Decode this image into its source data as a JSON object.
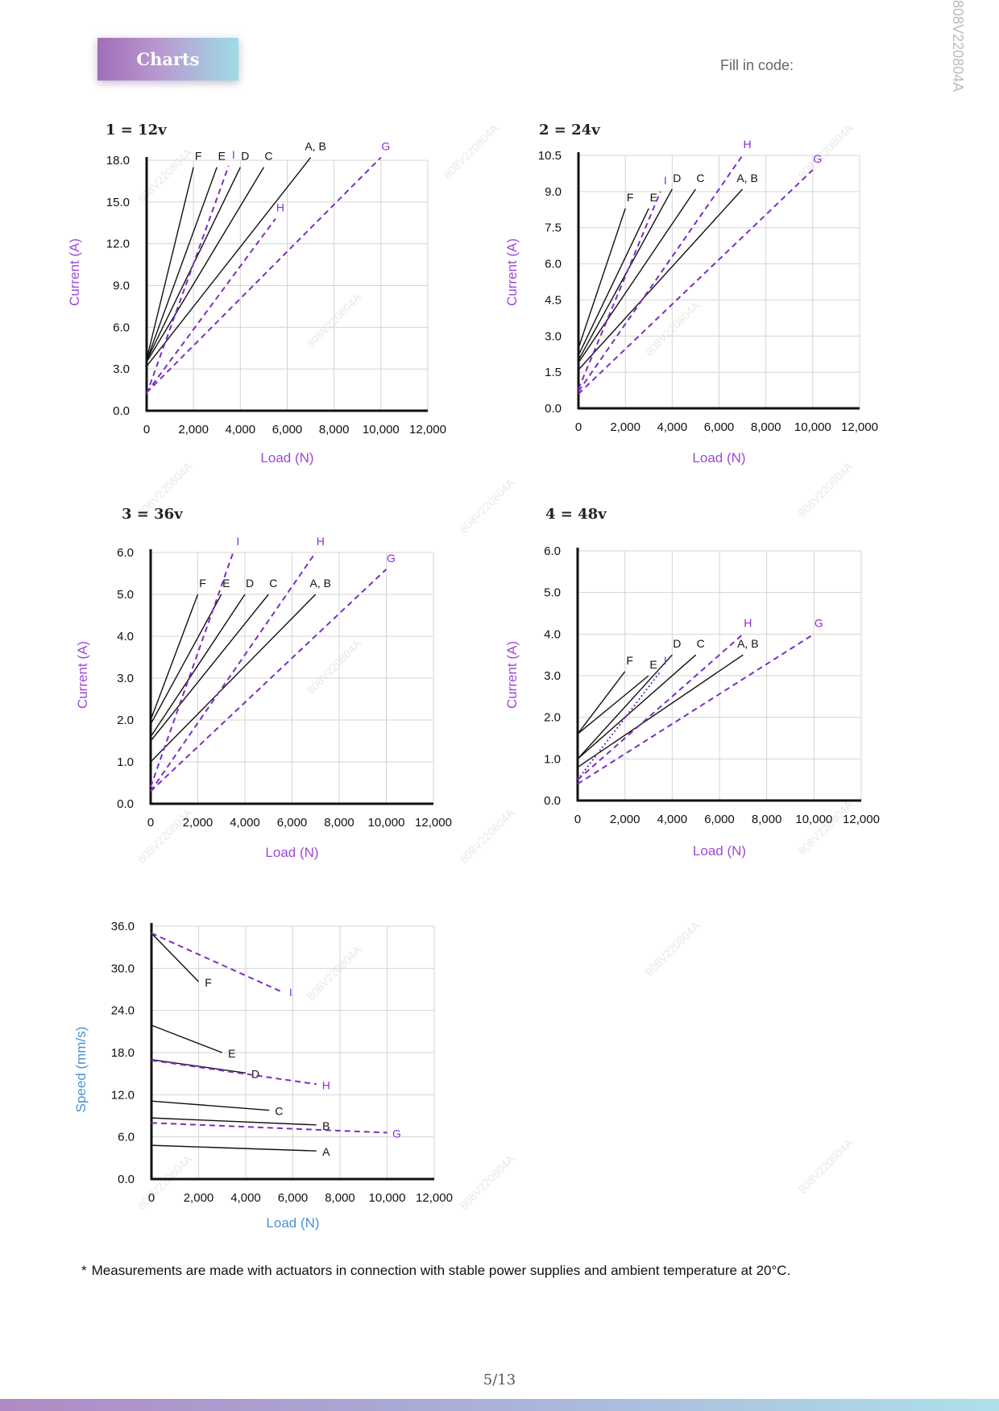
{
  "header": {
    "title": "Charts",
    "fill_code_label": "Fill in code:",
    "doc_code": "808V220804A"
  },
  "watermark": "808V220804A",
  "footnote": {
    "mark": "*",
    "text": "Measurements are made with actuators in connection with stable power supplies and ambient temperature at 20°C."
  },
  "page": {
    "number": "5∕13"
  },
  "colors": {
    "solid": "#111111",
    "dashed": "#7b2fbf",
    "current_axis_label": "#a048d8",
    "speed_axis_label": "#4a90d9"
  },
  "chart_data": [
    {
      "type": "line",
      "title": "1 = 12v",
      "xlabel": "Load (N)",
      "ylabel": "Current (A)",
      "xlim": [
        0,
        12000
      ],
      "ylim": [
        0,
        18
      ],
      "xticks": [
        "0",
        "2,000",
        "4,000",
        "6,000",
        "8,000",
        "10,000",
        "12,000"
      ],
      "yticks": [
        "0.0",
        "3.0",
        "6.0",
        "9.0",
        "12.0",
        "15.0",
        "18.0"
      ],
      "grid": true,
      "legend": "labels at line ends",
      "series": [
        {
          "name": "A, B",
          "style": "solid",
          "x": [
            0,
            7000
          ],
          "y": [
            3.2,
            18.2
          ]
        },
        {
          "name": "C",
          "style": "solid",
          "x": [
            0,
            5000
          ],
          "y": [
            3.5,
            17.5
          ]
        },
        {
          "name": "D",
          "style": "solid",
          "x": [
            0,
            4000
          ],
          "y": [
            3.6,
            17.5
          ]
        },
        {
          "name": "E",
          "style": "solid",
          "x": [
            0,
            3000
          ],
          "y": [
            3.6,
            17.5
          ]
        },
        {
          "name": "F",
          "style": "solid",
          "x": [
            0,
            2000
          ],
          "y": [
            3.7,
            17.5
          ]
        },
        {
          "name": "G",
          "style": "dashed",
          "x": [
            0,
            10000
          ],
          "y": [
            1.3,
            18.2
          ]
        },
        {
          "name": "H",
          "style": "dashed",
          "x": [
            0,
            5500
          ],
          "y": [
            1.3,
            13.8
          ]
        },
        {
          "name": "I",
          "style": "dashed",
          "x": [
            0,
            3500
          ],
          "y": [
            1.2,
            17.6
          ]
        }
      ]
    },
    {
      "type": "line",
      "title": "2 = 24v",
      "xlabel": "Load (N)",
      "ylabel": "Current (A)",
      "xlim": [
        0,
        12000
      ],
      "ylim": [
        0,
        10.5
      ],
      "xticks": [
        "0",
        "2,000",
        "4,000",
        "6,000",
        "8,000",
        "10,000",
        "12,000"
      ],
      "yticks": [
        "0.0",
        "1.5",
        "3.0",
        "4.5",
        "6.0",
        "7.5",
        "9.0",
        "10.5"
      ],
      "grid": true,
      "legend": "labels at line ends",
      "series": [
        {
          "name": "A, B",
          "style": "solid",
          "x": [
            0,
            7000
          ],
          "y": [
            1.6,
            9.1
          ]
        },
        {
          "name": "C",
          "style": "solid",
          "x": [
            0,
            5000
          ],
          "y": [
            1.9,
            9.1
          ]
        },
        {
          "name": "D",
          "style": "solid",
          "x": [
            0,
            4000
          ],
          "y": [
            2.0,
            9.1
          ]
        },
        {
          "name": "E",
          "style": "solid",
          "x": [
            0,
            3000
          ],
          "y": [
            2.2,
            8.3
          ]
        },
        {
          "name": "F",
          "style": "solid",
          "x": [
            0,
            2000
          ],
          "y": [
            2.5,
            8.3
          ]
        },
        {
          "name": "G",
          "style": "dashed",
          "x": [
            0,
            10000
          ],
          "y": [
            0.6,
            9.9
          ]
        },
        {
          "name": "H",
          "style": "dashed",
          "x": [
            0,
            7000
          ],
          "y": [
            0.7,
            10.5
          ]
        },
        {
          "name": "I",
          "style": "dashed",
          "x": [
            0,
            3500
          ],
          "y": [
            0.8,
            9.0
          ]
        }
      ]
    },
    {
      "type": "line",
      "title": "3 = 36v",
      "xlabel": "Load (N)",
      "ylabel": "Current (A)",
      "xlim": [
        0,
        12000
      ],
      "ylim": [
        0,
        6
      ],
      "xticks": [
        "0",
        "2,000",
        "4,000",
        "6,000",
        "8,000",
        "10,000",
        "12,000"
      ],
      "yticks": [
        "0.0",
        "1.0",
        "2.0",
        "3.0",
        "4.0",
        "5.0",
        "6.0"
      ],
      "grid": true,
      "legend": "labels at line ends",
      "series": [
        {
          "name": "A, B",
          "style": "solid",
          "x": [
            0,
            7000
          ],
          "y": [
            1.0,
            5.0
          ]
        },
        {
          "name": "C",
          "style": "solid",
          "x": [
            0,
            5000
          ],
          "y": [
            1.5,
            5.0
          ]
        },
        {
          "name": "D",
          "style": "solid",
          "x": [
            0,
            4000
          ],
          "y": [
            1.6,
            5.0
          ]
        },
        {
          "name": "E",
          "style": "solid",
          "x": [
            0,
            3000
          ],
          "y": [
            1.9,
            5.0
          ]
        },
        {
          "name": "F",
          "style": "solid",
          "x": [
            0,
            2000
          ],
          "y": [
            2.0,
            5.0
          ]
        },
        {
          "name": "G",
          "style": "dashed",
          "x": [
            0,
            10000
          ],
          "y": [
            0.3,
            5.6
          ]
        },
        {
          "name": "H",
          "style": "dashed",
          "x": [
            0,
            7000
          ],
          "y": [
            0.3,
            6.0
          ]
        },
        {
          "name": "I",
          "style": "dashed",
          "x": [
            0,
            3500
          ],
          "y": [
            0.4,
            6.0
          ]
        }
      ]
    },
    {
      "type": "line",
      "title": "4 = 48v",
      "xlabel": "Load (N)",
      "ylabel": "Current (A)",
      "xlim": [
        0,
        12000
      ],
      "ylim": [
        0,
        6
      ],
      "xticks": [
        "0",
        "2,000",
        "4,000",
        "6,000",
        "8,000",
        "10,000",
        "12,000"
      ],
      "yticks": [
        "0.0",
        "1.0",
        "2.0",
        "3.0",
        "4.0",
        "5.0",
        "6.0"
      ],
      "grid": true,
      "legend": "labels at line ends",
      "series": [
        {
          "name": "A, B",
          "style": "solid",
          "x": [
            0,
            7000
          ],
          "y": [
            0.8,
            3.5
          ]
        },
        {
          "name": "C",
          "style": "solid",
          "x": [
            0,
            5000
          ],
          "y": [
            1.0,
            3.5
          ]
        },
        {
          "name": "D",
          "style": "solid",
          "x": [
            0,
            4000
          ],
          "y": [
            1.0,
            3.5
          ]
        },
        {
          "name": "E",
          "style": "solid",
          "x": [
            0,
            3000
          ],
          "y": [
            1.6,
            3.0
          ]
        },
        {
          "name": "F",
          "style": "solid",
          "x": [
            0,
            2000
          ],
          "y": [
            1.6,
            3.1
          ]
        },
        {
          "name": "G",
          "style": "dashed",
          "x": [
            0,
            10000
          ],
          "y": [
            0.4,
            4.0
          ]
        },
        {
          "name": "H",
          "style": "dashed",
          "x": [
            0,
            7000
          ],
          "y": [
            0.5,
            4.0
          ]
        },
        {
          "name": "I",
          "style": "dotted",
          "x": [
            0,
            3500
          ],
          "y": [
            0.5,
            3.1
          ]
        }
      ]
    },
    {
      "type": "line",
      "title": "",
      "xlabel": "Load (N)",
      "ylabel": "Speed (mm/s)",
      "xlim": [
        0,
        12000
      ],
      "ylim": [
        0,
        36
      ],
      "xticks": [
        "0",
        "2,000",
        "4,000",
        "6,000",
        "8,000",
        "10,000",
        "12,000"
      ],
      "yticks": [
        "0.0",
        "6.0",
        "12.0",
        "18.0",
        "24.0",
        "30.0",
        "36.0"
      ],
      "grid": true,
      "legend": "labels at line ends",
      "series": [
        {
          "name": "A",
          "style": "solid",
          "x": [
            0,
            7000
          ],
          "y": [
            4.8,
            4.0
          ]
        },
        {
          "name": "B",
          "style": "solid",
          "x": [
            0,
            7000
          ],
          "y": [
            8.7,
            7.7
          ]
        },
        {
          "name": "C",
          "style": "solid",
          "x": [
            0,
            5000
          ],
          "y": [
            11.1,
            9.8
          ]
        },
        {
          "name": "D",
          "style": "solid",
          "x": [
            0,
            4000
          ],
          "y": [
            17.0,
            15.1
          ]
        },
        {
          "name": "E",
          "style": "solid",
          "x": [
            0,
            3000
          ],
          "y": [
            21.9,
            18.0
          ]
        },
        {
          "name": "F",
          "style": "solid",
          "x": [
            0,
            2000
          ],
          "y": [
            35.0,
            28.1
          ]
        },
        {
          "name": "G",
          "style": "dashed",
          "x": [
            0,
            10000
          ],
          "y": [
            8.0,
            6.6
          ]
        },
        {
          "name": "H",
          "style": "dashed",
          "x": [
            0,
            7000
          ],
          "y": [
            16.9,
            13.5
          ]
        },
        {
          "name": "I",
          "style": "dashed",
          "x": [
            0,
            5500
          ],
          "y": [
            35.0,
            26.7
          ]
        }
      ]
    }
  ]
}
